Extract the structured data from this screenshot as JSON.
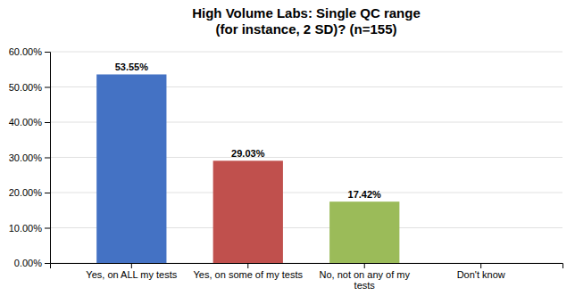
{
  "chart_data": {
    "type": "bar",
    "title": "High Volume Labs: Single QC range\n(for instance, 2 SD)?  (n=155)",
    "categories": [
      "Yes, on ALL my tests",
      "Yes, on some of my tests",
      "No, not on any of my\ntests",
      "Don't know"
    ],
    "values": [
      0.5355,
      0.2903,
      0.1742,
      0.0
    ],
    "value_labels": [
      "53.55%",
      "29.03%",
      "17.42%",
      null
    ],
    "colors": [
      "#4472C4",
      "#C0504D",
      "#9BBB59",
      "#4472C4"
    ],
    "ylim": [
      0,
      0.6
    ],
    "yticks": [
      {
        "value": 0.0,
        "label": "0.00%"
      },
      {
        "value": 0.1,
        "label": "10.00%"
      },
      {
        "value": 0.2,
        "label": "20.00%"
      },
      {
        "value": 0.3,
        "label": "30.00%"
      },
      {
        "value": 0.4,
        "label": "40.00%"
      },
      {
        "value": 0.5,
        "label": "50.00%"
      },
      {
        "value": 0.6,
        "label": "60.00%"
      }
    ],
    "grid": true
  }
}
